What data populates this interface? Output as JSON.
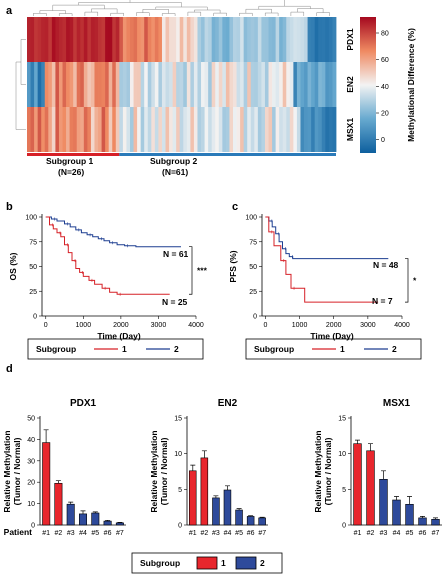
{
  "panels": {
    "a": "a",
    "b": "b",
    "c": "c",
    "d": "d"
  },
  "colors": {
    "subgroup1": "#d62027",
    "subgroup2": "#1d3e91",
    "bar1": "#e8262d",
    "bar2": "#2e4a9b",
    "heat_high": "#a5081f",
    "heat_mid": "#f3f3f3",
    "heat_low": "#0d5f9e"
  },
  "chart_data": [
    {
      "id": "heatmap",
      "type": "heatmap",
      "rows": [
        "PDX1",
        "EN2",
        "MSX1"
      ],
      "subgroups": [
        {
          "label": "Subgroup 1",
          "n_label": "(N=26)",
          "n": 26
        },
        {
          "label": "Subgroup 2",
          "n_label": "(N=61)",
          "n": 61
        }
      ],
      "colorbar": {
        "label": "Methylational Difference (%)",
        "ticks": [
          0,
          20,
          40,
          60,
          80
        ],
        "range": [
          -10,
          92
        ]
      }
    },
    {
      "id": "os",
      "type": "line",
      "ylabel": "OS (%)",
      "xlabel": "Time (Day)",
      "xticks": [
        0,
        1000,
        2000,
        3000,
        4000
      ],
      "yticks": [
        0,
        25,
        50,
        75,
        100
      ],
      "xlim": [
        -100,
        4000
      ],
      "ylim": [
        0,
        100
      ],
      "significance": "***",
      "series": [
        {
          "group": "2",
          "n_label": "N = 61",
          "points": [
            [
              0,
              100
            ],
            [
              150,
              98
            ],
            [
              300,
              96
            ],
            [
              500,
              93
            ],
            [
              650,
              90
            ],
            [
              800,
              87
            ],
            [
              950,
              84
            ],
            [
              1100,
              82
            ],
            [
              1250,
              80
            ],
            [
              1400,
              78
            ],
            [
              1550,
              76
            ],
            [
              1700,
              74
            ],
            [
              1900,
              72
            ],
            [
              2100,
              71
            ],
            [
              2400,
              70
            ],
            [
              3600,
              70
            ]
          ]
        },
        {
          "group": "1",
          "n_label": "N = 25",
          "points": [
            [
              0,
              100
            ],
            [
              100,
              92
            ],
            [
              200,
              88
            ],
            [
              300,
              84
            ],
            [
              400,
              80
            ],
            [
              500,
              72
            ],
            [
              600,
              64
            ],
            [
              700,
              56
            ],
            [
              800,
              48
            ],
            [
              900,
              44
            ],
            [
              1000,
              40
            ],
            [
              1150,
              36
            ],
            [
              1300,
              32
            ],
            [
              1500,
              28
            ],
            [
              1700,
              24
            ],
            [
              1900,
              22
            ],
            [
              3300,
              22
            ]
          ]
        }
      ]
    },
    {
      "id": "pfs",
      "type": "line",
      "ylabel": "PFS (%)",
      "xlabel": "Time (Day)",
      "xticks": [
        0,
        1000,
        2000,
        3000,
        4000
      ],
      "yticks": [
        0,
        25,
        50,
        75,
        100
      ],
      "xlim": [
        -100,
        4000
      ],
      "ylim": [
        0,
        100
      ],
      "significance": "*",
      "series": [
        {
          "group": "2",
          "n_label": "N = 48",
          "points": [
            [
              0,
              100
            ],
            [
              100,
              96
            ],
            [
              200,
              90
            ],
            [
              300,
              83
            ],
            [
              400,
              75
            ],
            [
              500,
              68
            ],
            [
              600,
              63
            ],
            [
              700,
              60
            ],
            [
              800,
              58
            ],
            [
              3600,
              58
            ]
          ]
        },
        {
          "group": "1",
          "n_label": "N = 7",
          "points": [
            [
              0,
              100
            ],
            [
              100,
              85
            ],
            [
              250,
              71
            ],
            [
              450,
              56
            ],
            [
              600,
              42
            ],
            [
              750,
              28
            ],
            [
              1150,
              14
            ],
            [
              3300,
              14
            ]
          ]
        }
      ]
    },
    {
      "id": "pdx1_bar",
      "type": "bar",
      "title": "PDX1",
      "ylabel": [
        "Relative Methylation",
        "(Tumor / Normal)"
      ],
      "xlabel": "Patient",
      "categories": [
        "#1",
        "#2",
        "#3",
        "#4",
        "#5",
        "#6",
        "#7"
      ],
      "groups": [
        1,
        1,
        2,
        2,
        2,
        2,
        2
      ],
      "values": [
        38.5,
        19.5,
        9.7,
        5.2,
        5.6,
        1.8,
        1.0
      ],
      "errors": [
        6.0,
        1.2,
        1.0,
        1.4,
        0.5,
        0.4,
        0.2
      ],
      "ylim": [
        0,
        50
      ],
      "yticks": [
        0,
        10,
        20,
        30,
        40,
        50
      ]
    },
    {
      "id": "en2_bar",
      "type": "bar",
      "title": "EN2",
      "ylabel": [
        "Relative Methylation",
        "(Tumor / Normal)"
      ],
      "xlabel": "",
      "categories": [
        "#1",
        "#2",
        "#3",
        "#4",
        "#5",
        "#6",
        "#7"
      ],
      "groups": [
        1,
        1,
        2,
        2,
        2,
        2,
        2
      ],
      "values": [
        7.6,
        9.4,
        3.8,
        4.9,
        2.1,
        1.2,
        1.0
      ],
      "errors": [
        0.8,
        1.0,
        0.3,
        0.6,
        0.2,
        0.1,
        0.1
      ],
      "ylim": [
        0,
        15
      ],
      "yticks": [
        0,
        5,
        10,
        15
      ]
    },
    {
      "id": "msx1_bar",
      "type": "bar",
      "title": "MSX1",
      "ylabel": [
        "Relative Methylation",
        "(Tumor / Normal)"
      ],
      "xlabel": "",
      "categories": [
        "#1",
        "#2",
        "#3",
        "#4",
        "#5",
        "#6",
        "#7"
      ],
      "groups": [
        1,
        1,
        2,
        2,
        2,
        2,
        2
      ],
      "values": [
        11.4,
        10.4,
        6.4,
        3.5,
        2.9,
        1.0,
        0.8
      ],
      "errors": [
        0.5,
        1.0,
        1.2,
        0.5,
        1.1,
        0.2,
        0.2
      ],
      "ylim": [
        0,
        15
      ],
      "yticks": [
        0,
        5,
        10,
        15
      ]
    }
  ],
  "legends": {
    "survival": {
      "title": "Subgroup",
      "items": [
        "1",
        "2"
      ]
    },
    "bars": {
      "title": "Subgroup",
      "items": [
        "1",
        "2"
      ]
    }
  }
}
